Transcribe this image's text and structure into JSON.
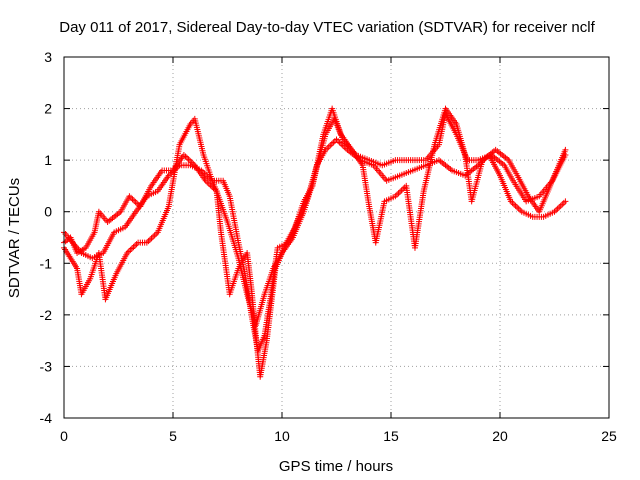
{
  "chart_data": {
    "type": "scatter",
    "title": "Day 011 of 2017, Sidereal Day-to-day VTEC variation (SDTVAR) for receiver nclf",
    "xlabel": "GPS time / hours",
    "ylabel": "SDTVAR / TECUs",
    "xlim": [
      0,
      25
    ],
    "ylim": [
      -4,
      3
    ],
    "xticks": [
      "0",
      "5",
      "10",
      "15",
      "20",
      "25"
    ],
    "yticks": [
      "-4",
      "-3",
      "-2",
      "-1",
      "0",
      "1",
      "2",
      "3"
    ],
    "grid": true,
    "marker": "+",
    "color": "#ff0000",
    "series": [
      {
        "name": "trace-1",
        "points": [
          [
            0.0,
            -0.6
          ],
          [
            0.3,
            -0.5
          ],
          [
            0.6,
            -0.8
          ],
          [
            1.0,
            -0.7
          ],
          [
            1.4,
            -0.4
          ],
          [
            1.6,
            0.0
          ],
          [
            2.0,
            -0.2
          ],
          [
            2.6,
            0.0
          ],
          [
            3.0,
            0.3
          ],
          [
            3.5,
            0.1
          ],
          [
            4.0,
            0.5
          ],
          [
            4.5,
            0.8
          ],
          [
            5.0,
            0.8
          ],
          [
            5.5,
            1.1
          ],
          [
            6.0,
            0.9
          ],
          [
            6.5,
            0.6
          ],
          [
            7.0,
            0.4
          ],
          [
            7.5,
            -0.2
          ],
          [
            8.0,
            -0.9
          ],
          [
            8.4,
            -1.6
          ],
          [
            8.8,
            -2.2
          ],
          [
            9.2,
            -1.6
          ],
          [
            9.6,
            -1.1
          ],
          [
            10.0,
            -0.8
          ],
          [
            10.5,
            -0.5
          ],
          [
            11.0,
            0.0
          ],
          [
            11.5,
            0.7
          ],
          [
            12.0,
            1.5
          ],
          [
            12.4,
            1.8
          ],
          [
            12.8,
            1.4
          ],
          [
            13.4,
            1.1
          ],
          [
            14.0,
            1.0
          ],
          [
            14.6,
            0.9
          ],
          [
            15.2,
            1.0
          ],
          [
            16.0,
            1.0
          ],
          [
            16.6,
            1.0
          ],
          [
            17.2,
            1.3
          ],
          [
            17.5,
            1.9
          ],
          [
            18.0,
            1.5
          ],
          [
            18.5,
            1.0
          ],
          [
            19.0,
            1.0
          ],
          [
            19.6,
            1.1
          ],
          [
            20.2,
            0.9
          ],
          [
            20.6,
            0.6
          ],
          [
            21.2,
            0.2
          ],
          [
            21.8,
            0.3
          ],
          [
            22.4,
            0.6
          ],
          [
            23.0,
            1.1
          ]
        ]
      },
      {
        "name": "trace-2",
        "points": [
          [
            0.0,
            -0.4
          ],
          [
            0.4,
            -0.6
          ],
          [
            0.8,
            -0.8
          ],
          [
            1.3,
            -0.9
          ],
          [
            1.8,
            -0.8
          ],
          [
            2.3,
            -0.4
          ],
          [
            2.8,
            -0.3
          ],
          [
            3.3,
            0.0
          ],
          [
            3.8,
            0.3
          ],
          [
            4.3,
            0.4
          ],
          [
            4.8,
            0.7
          ],
          [
            5.3,
            0.9
          ],
          [
            5.8,
            0.9
          ],
          [
            6.3,
            0.8
          ],
          [
            6.8,
            0.6
          ],
          [
            7.3,
            0.6
          ],
          [
            7.6,
            0.3
          ],
          [
            8.0,
            -0.6
          ],
          [
            8.3,
            -1.2
          ],
          [
            8.6,
            -2.0
          ],
          [
            8.9,
            -2.7
          ],
          [
            9.2,
            -2.4
          ],
          [
            9.5,
            -1.6
          ],
          [
            9.8,
            -0.7
          ],
          [
            10.3,
            -0.6
          ],
          [
            10.7,
            -0.2
          ],
          [
            11.2,
            0.3
          ],
          [
            11.6,
            0.9
          ],
          [
            12.0,
            1.2
          ],
          [
            12.5,
            1.4
          ],
          [
            13.0,
            1.2
          ],
          [
            13.6,
            1.0
          ],
          [
            14.2,
            0.9
          ],
          [
            14.8,
            0.6
          ],
          [
            15.4,
            0.7
          ],
          [
            16.0,
            0.8
          ],
          [
            16.6,
            0.9
          ],
          [
            17.2,
            1.0
          ],
          [
            17.8,
            0.8
          ],
          [
            18.4,
            0.7
          ],
          [
            19.0,
            0.9
          ],
          [
            19.5,
            1.1
          ],
          [
            20.0,
            0.7
          ],
          [
            20.5,
            0.2
          ],
          [
            21.0,
            0.0
          ],
          [
            21.5,
            -0.1
          ],
          [
            22.0,
            -0.1
          ],
          [
            22.5,
            0.0
          ],
          [
            23.0,
            0.2
          ]
        ]
      },
      {
        "name": "trace-3",
        "points": [
          [
            0.0,
            -0.7
          ],
          [
            0.3,
            -0.9
          ],
          [
            0.6,
            -1.1
          ],
          [
            0.8,
            -1.6
          ],
          [
            1.2,
            -1.3
          ],
          [
            1.6,
            -0.8
          ],
          [
            1.9,
            -1.7
          ],
          [
            2.4,
            -1.2
          ],
          [
            2.9,
            -0.8
          ],
          [
            3.4,
            -0.6
          ],
          [
            3.8,
            -0.6
          ],
          [
            4.3,
            -0.4
          ],
          [
            4.8,
            0.1
          ],
          [
            5.3,
            1.3
          ],
          [
            5.8,
            1.7
          ],
          [
            6.0,
            1.8
          ],
          [
            6.4,
            1.1
          ],
          [
            6.8,
            0.6
          ],
          [
            7.0,
            0.4
          ],
          [
            7.2,
            -0.4
          ],
          [
            7.6,
            -1.6
          ],
          [
            8.0,
            -1.1
          ],
          [
            8.4,
            -0.8
          ],
          [
            8.6,
            -1.5
          ],
          [
            8.8,
            -2.4
          ],
          [
            9.0,
            -3.2
          ],
          [
            9.3,
            -2.5
          ],
          [
            9.7,
            -1.1
          ],
          [
            10.2,
            -0.6
          ],
          [
            10.6,
            -0.3
          ],
          [
            11.0,
            0.2
          ],
          [
            11.4,
            0.5
          ],
          [
            11.9,
            1.5
          ],
          [
            12.3,
            2.0
          ],
          [
            12.7,
            1.5
          ],
          [
            13.2,
            1.2
          ],
          [
            13.7,
            0.9
          ],
          [
            14.0,
            0.1
          ],
          [
            14.3,
            -0.6
          ],
          [
            14.7,
            0.2
          ],
          [
            15.2,
            0.3
          ],
          [
            15.7,
            0.5
          ],
          [
            16.1,
            -0.7
          ],
          [
            16.5,
            0.4
          ],
          [
            17.0,
            1.3
          ],
          [
            17.5,
            2.0
          ],
          [
            18.0,
            1.7
          ],
          [
            18.4,
            1.1
          ],
          [
            18.7,
            0.2
          ],
          [
            19.2,
            1.0
          ],
          [
            19.8,
            1.2
          ],
          [
            20.4,
            1.0
          ],
          [
            20.8,
            0.7
          ],
          [
            21.3,
            0.3
          ],
          [
            21.8,
            0.0
          ],
          [
            22.3,
            0.5
          ],
          [
            22.7,
            0.9
          ],
          [
            23.0,
            1.2
          ]
        ]
      }
    ]
  }
}
